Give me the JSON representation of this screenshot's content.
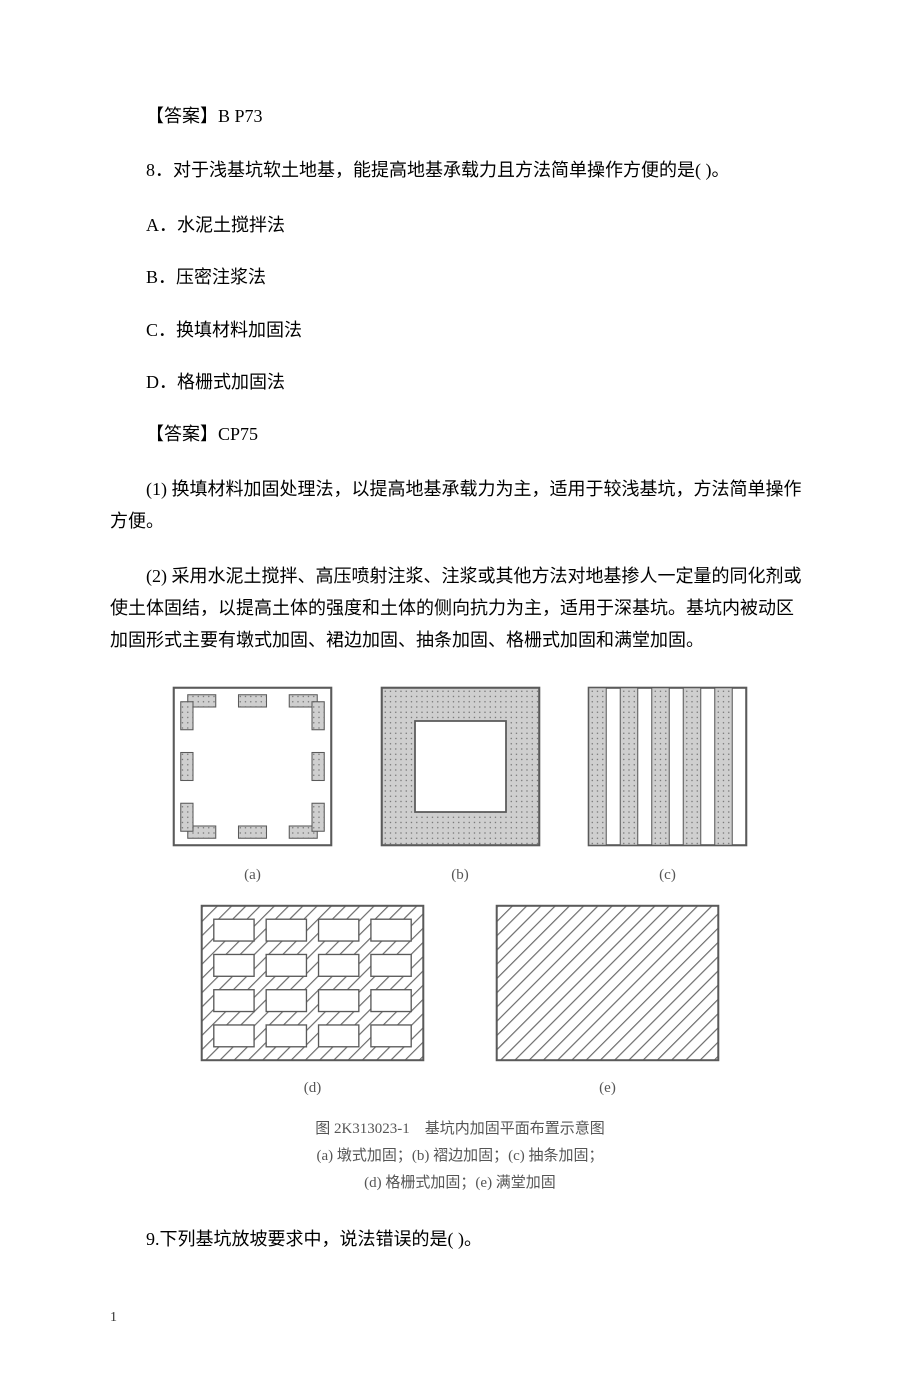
{
  "answer7": "【答案】B P73",
  "q8": {
    "stem": "8．对于浅基坑软土地基，能提高地基承载力且方法简单操作方便的是( )。",
    "A": "A．水泥土搅拌法",
    "B": "B．压密注浆法",
    "C": "C．换填材料加固法",
    "D": "D．格栅式加固法",
    "answer": "【答案】CP75",
    "explain1": "(1) 换填材料加固处理法，以提高地基承载力为主，适用于较浅基坑，方法简单操作方便。",
    "explain2": "(2) 采用水泥土搅拌、高压喷射注浆、注浆或其他方法对地基掺人一定量的同化剂或使土体固结，以提高土体的强度和土体的侧向抗力为主，适用于深基坑。基坑内被动区加固形式主要有墩式加固、裙边加固、抽条加固、格栅式加固和满堂加固。"
  },
  "figure": {
    "labels": {
      "a": "(a)",
      "b": "(b)",
      "c": "(c)",
      "d": "(d)",
      "e": "(e)"
    },
    "title": "图 2K313023-1　基坑内加固平面布置示意图",
    "line1": "(a) 墩式加固；(b) 褶边加固；(c) 抽条加固；",
    "line2": "(d) 格栅式加固；(e) 满堂加固",
    "colors": {
      "outline": "#5a5a5a",
      "fill_gray": "#b0b0b0",
      "hatch": "#6a6a6a",
      "white": "#ffffff"
    },
    "thumb_w": 175,
    "thumb_h": 175,
    "thumb_w2": 235,
    "thumb_h2": 168
  },
  "q9": {
    "stem": "9.下列基坑放坡要求中，说法错误的是( )。"
  },
  "page_num": "1"
}
